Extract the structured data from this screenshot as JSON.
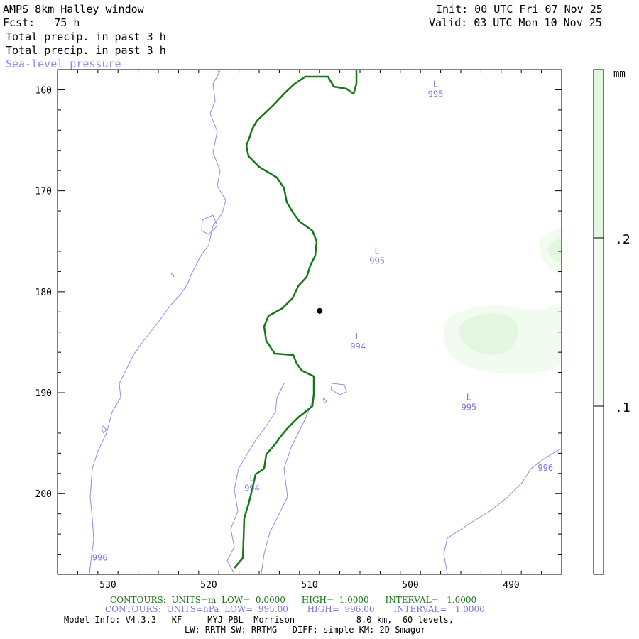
{
  "header": {
    "title": "AMPS 8km Halley window",
    "fcst": "Fcst:   75 h",
    "init": "Init: 00 UTC Fri 07 Nov 25",
    "valid": "Valid: 03 UTC Mon 10 Nov 25",
    "field1": "Total precip. in past 3 h",
    "field2": "Total precip. in past 3 h",
    "field3": "Sea-level pressure"
  },
  "colors": {
    "terrain_contour": "#147814",
    "pressure_contour": "#8c8cf0",
    "precip_light": "#f1fbf0",
    "precip_mid": "#e3f7e0"
  },
  "chart_data": {
    "type": "contour-map",
    "x_ticks": [
      530,
      520,
      510,
      500,
      490
    ],
    "y_ticks": [
      160,
      170,
      180,
      190,
      200
    ],
    "xlim": [
      535,
      485
    ],
    "ylim": [
      158,
      208
    ],
    "pressure_labels": [
      {
        "text": "L",
        "value": "995",
        "x": 497.5,
        "y": 160.3
      },
      {
        "text": "L",
        "value": "995",
        "x": 503.3,
        "y": 176.8
      },
      {
        "text": "L",
        "value": "994",
        "x": 505.2,
        "y": 185.3
      },
      {
        "text": "L",
        "value": "995",
        "x": 494.2,
        "y": 191.3
      },
      {
        "text": "L",
        "value": "994",
        "x": 515.7,
        "y": 199.3
      },
      {
        "value": "996",
        "x": 530.8,
        "y": 206.2
      },
      {
        "value": "996",
        "x": 486.6,
        "y": 197.3
      }
    ],
    "station": {
      "x": 509.0,
      "y": 181.9
    },
    "colorbar": {
      "unit": "mm",
      "labels": [
        ".2",
        ".1"
      ]
    }
  },
  "footer": {
    "green_line": "CONTOURS:  UNITS=m  LOW=  0.0000      HIGH=  1.0000      INTERVAL=   1.0000",
    "blue_line": "CONTOURS:  UNITS=hPa  LOW=  995.00       HIGH=  996.00       INTERVAL=   1.0000",
    "model_info": "Model Info: V4.3.3   KF     MYJ PBL  Morrison            8.0 km,  60 levels,",
    "physics": "LW: RRTM SW: RRTMG   DIFF: simple KM: 2D Smagor"
  }
}
